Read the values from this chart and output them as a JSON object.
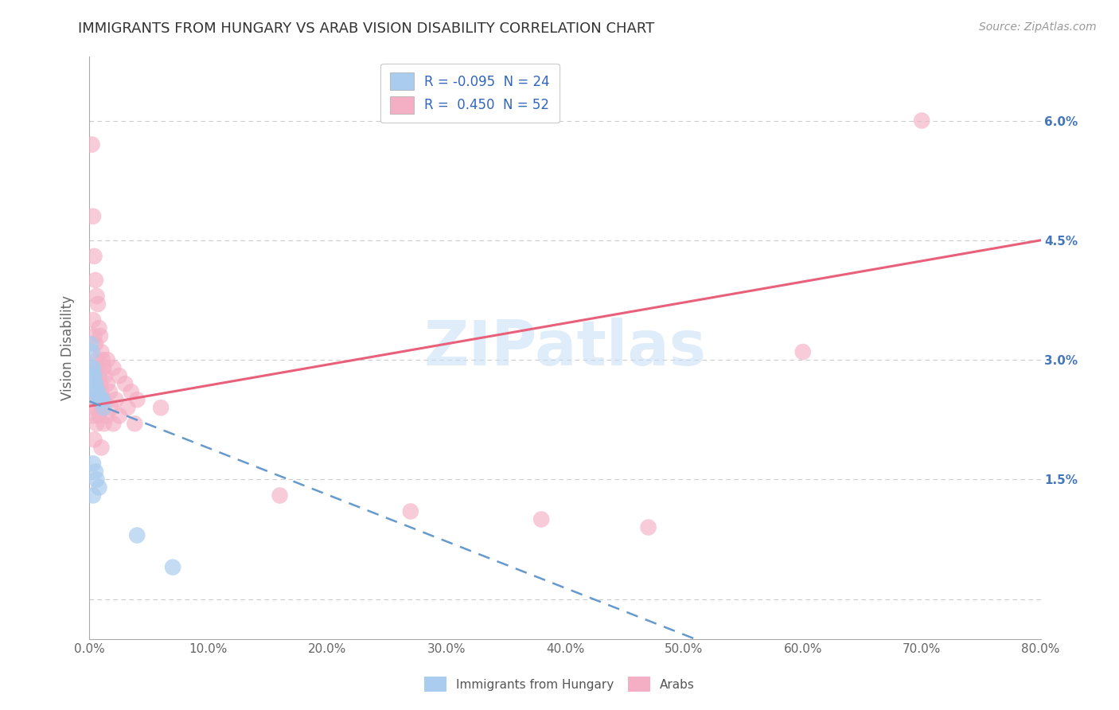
{
  "title": "IMMIGRANTS FROM HUNGARY VS ARAB VISION DISABILITY CORRELATION CHART",
  "source": "Source: ZipAtlas.com",
  "ylabel": "Vision Disability",
  "xlabel": "",
  "watermark": "ZIPatlas",
  "xlim": [
    0.0,
    0.8
  ],
  "ylim": [
    -0.005,
    0.068
  ],
  "xticks": [
    0.0,
    0.1,
    0.2,
    0.3,
    0.4,
    0.5,
    0.6,
    0.7,
    0.8
  ],
  "xticklabels": [
    "0.0%",
    "10.0%",
    "20.0%",
    "30.0%",
    "40.0%",
    "50.0%",
    "60.0%",
    "70.0%",
    "80.0%"
  ],
  "yticks": [
    0.0,
    0.015,
    0.03,
    0.045,
    0.06
  ],
  "ytick_left_labels": [
    "",
    "",
    "",
    "",
    ""
  ],
  "ytick_right_labels": [
    "",
    "1.5%",
    "3.0%",
    "4.5%",
    "6.0%"
  ],
  "legend_label1": "Immigrants from Hungary",
  "legend_label2": "Arabs",
  "blue_color": "#aaccee",
  "pink_color": "#f4afc4",
  "blue_line_color": "#6699cc",
  "pink_line_color": "#e8607a",
  "blue_line_x": [
    0.0,
    0.8
  ],
  "blue_line_y": [
    0.0248,
    -0.022
  ],
  "pink_line_x": [
    0.0,
    0.8
  ],
  "pink_line_y": [
    0.0242,
    0.045
  ],
  "scatter_blue": [
    [
      0.001,
      0.032
    ],
    [
      0.002,
      0.031
    ],
    [
      0.002,
      0.029
    ],
    [
      0.003,
      0.029
    ],
    [
      0.003,
      0.028
    ],
    [
      0.004,
      0.028
    ],
    [
      0.004,
      0.027
    ],
    [
      0.005,
      0.027
    ],
    [
      0.005,
      0.026
    ],
    [
      0.006,
      0.026
    ],
    [
      0.007,
      0.026
    ],
    [
      0.007,
      0.025
    ],
    [
      0.008,
      0.025
    ],
    [
      0.009,
      0.025
    ],
    [
      0.01,
      0.025
    ],
    [
      0.011,
      0.025
    ],
    [
      0.012,
      0.024
    ],
    [
      0.003,
      0.017
    ],
    [
      0.005,
      0.016
    ],
    [
      0.006,
      0.015
    ],
    [
      0.008,
      0.014
    ],
    [
      0.003,
      0.013
    ],
    [
      0.04,
      0.008
    ],
    [
      0.07,
      0.004
    ]
  ],
  "scatter_pink": [
    [
      0.002,
      0.057
    ],
    [
      0.003,
      0.048
    ],
    [
      0.004,
      0.043
    ],
    [
      0.005,
      0.04
    ],
    [
      0.006,
      0.038
    ],
    [
      0.007,
      0.037
    ],
    [
      0.003,
      0.035
    ],
    [
      0.008,
      0.034
    ],
    [
      0.004,
      0.033
    ],
    [
      0.009,
      0.033
    ],
    [
      0.005,
      0.032
    ],
    [
      0.01,
      0.031
    ],
    [
      0.006,
      0.03
    ],
    [
      0.011,
      0.03
    ],
    [
      0.015,
      0.03
    ],
    [
      0.007,
      0.029
    ],
    [
      0.012,
      0.029
    ],
    [
      0.02,
      0.029
    ],
    [
      0.008,
      0.028
    ],
    [
      0.013,
      0.028
    ],
    [
      0.025,
      0.028
    ],
    [
      0.009,
      0.027
    ],
    [
      0.015,
      0.027
    ],
    [
      0.03,
      0.027
    ],
    [
      0.01,
      0.026
    ],
    [
      0.017,
      0.026
    ],
    [
      0.035,
      0.026
    ],
    [
      0.004,
      0.025
    ],
    [
      0.012,
      0.025
    ],
    [
      0.022,
      0.025
    ],
    [
      0.04,
      0.025
    ],
    [
      0.005,
      0.024
    ],
    [
      0.01,
      0.024
    ],
    [
      0.018,
      0.024
    ],
    [
      0.032,
      0.024
    ],
    [
      0.06,
      0.024
    ],
    [
      0.003,
      0.023
    ],
    [
      0.008,
      0.023
    ],
    [
      0.015,
      0.023
    ],
    [
      0.025,
      0.023
    ],
    [
      0.006,
      0.022
    ],
    [
      0.012,
      0.022
    ],
    [
      0.02,
      0.022
    ],
    [
      0.038,
      0.022
    ],
    [
      0.004,
      0.02
    ],
    [
      0.01,
      0.019
    ],
    [
      0.16,
      0.013
    ],
    [
      0.27,
      0.011
    ],
    [
      0.38,
      0.01
    ],
    [
      0.47,
      0.009
    ],
    [
      0.6,
      0.031
    ],
    [
      0.7,
      0.06
    ]
  ]
}
